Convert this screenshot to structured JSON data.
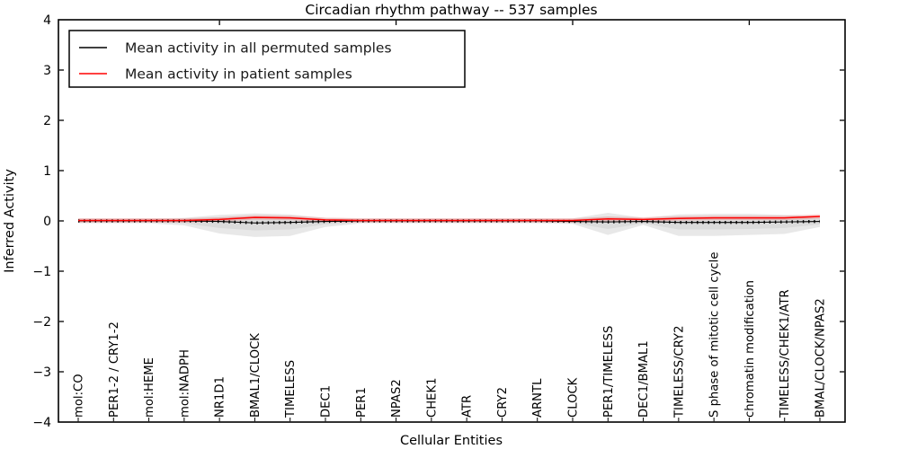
{
  "figure": {
    "title": "Circadian rhythm pathway -- 537 samples"
  },
  "axes": {
    "xlabel": "Cellular Entities",
    "ylabel": "Inferred Activity"
  },
  "legend": {
    "items": [
      {
        "label": "Mean activity in all permuted samples",
        "color": "#000000"
      },
      {
        "label": "Mean activity in patient samples",
        "color": "#ff0000"
      }
    ]
  },
  "chart_data": {
    "type": "line",
    "title": "Circadian rhythm pathway -- 537 samples",
    "xlabel": "Cellular Entities",
    "ylabel": "Inferred Activity",
    "ylim": [
      -4,
      4
    ],
    "yticks": [
      -4,
      -3,
      -2,
      -1,
      0,
      1,
      2,
      3,
      4
    ],
    "grid": false,
    "legend_position": "upper left",
    "top_axis_ticks_at_x": [
      5,
      10,
      15,
      20
    ],
    "categories": [
      "mol:CO",
      "PER1-2 / CRY1-2",
      "mol:HEME",
      "mol:NADPH",
      "NR1D1",
      "BMAL1/CLOCK",
      "TIMELESS",
      "DEC1",
      "PER1",
      "NPAS2",
      "CHEK1",
      "ATR",
      "CRY2",
      "ARNTL",
      "CLOCK",
      "PER1/TIMELESS",
      "DEC1/BMAL1",
      "TIMELESS/CRY2",
      "S phase of mitotic cell cycle",
      "chromatin modification",
      "TIMELESS/CHEK1/ATR",
      "BMAL/CLOCK/NPAS2"
    ],
    "series": [
      {
        "name": "Mean activity in all permuted samples",
        "color": "#000000",
        "style": "solid with dense vertical dash markers",
        "values": [
          0,
          0,
          0,
          0,
          -0.01,
          -0.04,
          -0.03,
          -0.01,
          0,
          0,
          0,
          0,
          0,
          0,
          -0.01,
          -0.02,
          -0.01,
          -0.03,
          -0.03,
          -0.03,
          -0.02,
          -0.01
        ]
      },
      {
        "name": "Mean activity in patient samples",
        "color": "#ff0000",
        "style": "solid",
        "values": [
          0.01,
          0.01,
          0.01,
          0.01,
          0.03,
          0.07,
          0.06,
          0.02,
          0.01,
          0.01,
          0.01,
          0.01,
          0.01,
          0.01,
          0.01,
          0.04,
          0.03,
          0.05,
          0.06,
          0.06,
          0.06,
          0.09
        ]
      }
    ],
    "bands": [
      {
        "name": "permuted-sample spread (outer)",
        "color": "#cccccc",
        "opacity": 0.45,
        "upper": [
          0.05,
          0.05,
          0.05,
          0.06,
          0.12,
          0.15,
          0.13,
          0.06,
          0.05,
          0.05,
          0.05,
          0.05,
          0.05,
          0.05,
          0.05,
          0.16,
          0.06,
          0.13,
          0.14,
          0.14,
          0.12,
          0.1
        ],
        "lower": [
          -0.05,
          -0.05,
          -0.05,
          -0.09,
          -0.25,
          -0.32,
          -0.3,
          -0.12,
          -0.05,
          -0.05,
          -0.05,
          -0.05,
          -0.05,
          -0.05,
          -0.06,
          -0.28,
          -0.08,
          -0.3,
          -0.3,
          -0.28,
          -0.26,
          -0.12
        ]
      },
      {
        "name": "permuted-sample spread (inner)",
        "color": "#cccccc",
        "opacity": 0.45,
        "upper": [
          0.03,
          0.03,
          0.03,
          0.04,
          0.07,
          0.09,
          0.08,
          0.04,
          0.03,
          0.03,
          0.03,
          0.03,
          0.03,
          0.03,
          0.03,
          0.09,
          0.04,
          0.08,
          0.08,
          0.08,
          0.07,
          0.06
        ],
        "lower": [
          -0.03,
          -0.03,
          -0.03,
          -0.05,
          -0.14,
          -0.19,
          -0.17,
          -0.07,
          -0.03,
          -0.03,
          -0.03,
          -0.03,
          -0.03,
          -0.03,
          -0.04,
          -0.16,
          -0.05,
          -0.17,
          -0.17,
          -0.16,
          -0.14,
          -0.07
        ]
      }
    ]
  }
}
